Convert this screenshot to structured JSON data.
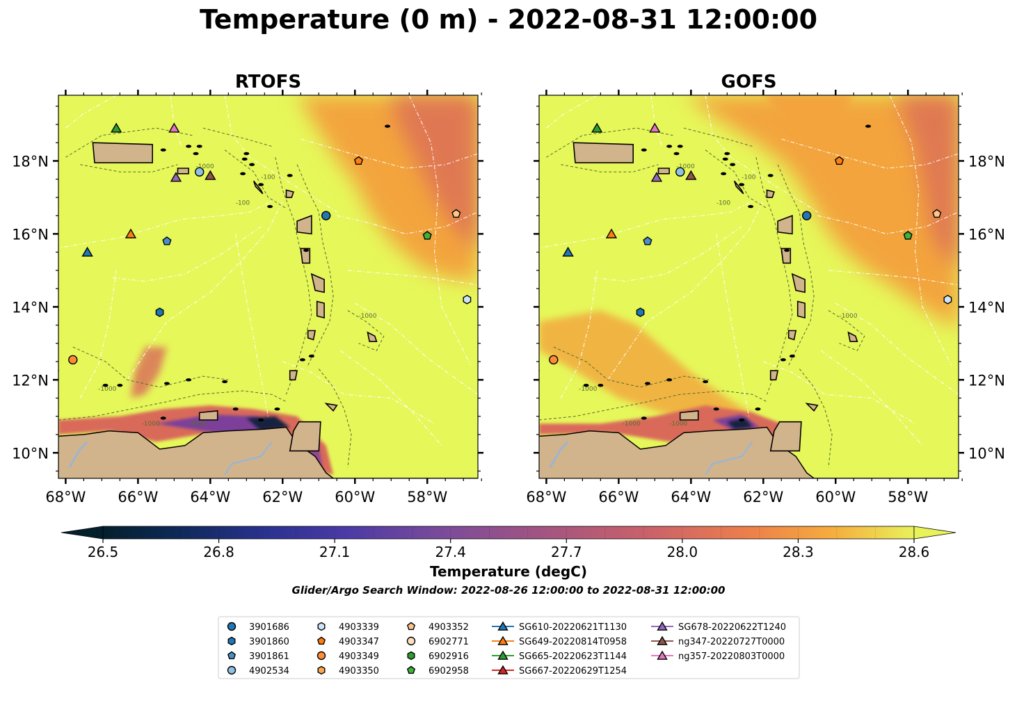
{
  "figure": {
    "suptitle": "Temperature (0 m) - 2022-08-31 12:00:00",
    "search_window": "Glider/Argo Search Window: 2022-08-26 12:00:00 to 2022-08-31 12:00:00"
  },
  "colors": {
    "land": "#d2b48c",
    "ocean_warm": "#e6f75a",
    "ocean_orange": "#f3a43c",
    "ocean_red": "#d96b5a",
    "ocean_purple": "#7b3f9a",
    "ocean_dark": "#162041",
    "eez_line": "#ffffff",
    "bathy_contour": "#556b2f",
    "river": "#9db4d0"
  },
  "chart_data": {
    "type": "heatmap",
    "map_extent": {
      "lon": [
        -68.2,
        -56.6
      ],
      "lat": [
        9.3,
        19.8
      ]
    },
    "x_ticks": [
      -68,
      -66,
      -64,
      -62,
      -60,
      -58
    ],
    "x_tick_labels": [
      "68°W",
      "66°W",
      "64°W",
      "62°W",
      "60°W",
      "58°W"
    ],
    "y_ticks": [
      10,
      12,
      14,
      16,
      18
    ],
    "y_tick_labels": [
      "10°N",
      "12°N",
      "14°N",
      "16°N",
      "18°N"
    ],
    "bathy_contour_labels": [
      "-100",
      "-1000"
    ],
    "panels": [
      {
        "title": "RTOFS",
        "y_axis_side": "left"
      },
      {
        "title": "GOFS",
        "y_axis_side": "right"
      }
    ],
    "colorbar": {
      "label": "Temperature (degC)",
      "min": 26.5,
      "max": 28.6,
      "step": 0.1,
      "extend": "both",
      "ticks": [
        "26.5",
        "26.8",
        "27.1",
        "27.4",
        "27.7",
        "28.0",
        "28.3",
        "28.6"
      ],
      "colormap": "thermal"
    },
    "observations": [
      {
        "id": "3901686",
        "type": "argo",
        "marker": "circle",
        "color": "#1f77b4",
        "lon": -60.8,
        "lat": 16.5
      },
      {
        "id": "3901860",
        "type": "argo",
        "marker": "hexagon",
        "color": "#1f77b4",
        "lon": -65.4,
        "lat": 13.85
      },
      {
        "id": "3901861",
        "type": "argo",
        "marker": "pentagon",
        "color": "#4a90c8",
        "lon": -65.2,
        "lat": 15.8
      },
      {
        "id": "4902534",
        "type": "argo",
        "marker": "circle",
        "color": "#8fc1e3",
        "lon": -64.3,
        "lat": 17.7
      },
      {
        "id": "4903339",
        "type": "argo",
        "marker": "hexagon",
        "color": "#cde6f7",
        "lon": -56.9,
        "lat": 14.2
      },
      {
        "id": "4903347",
        "type": "argo",
        "marker": "pentagon",
        "color": "#ff7f0e",
        "lon": -59.9,
        "lat": 18.0
      },
      {
        "id": "4903349",
        "type": "argo",
        "marker": "circle",
        "color": "#ff8c3a",
        "lon": -67.8,
        "lat": 12.55
      },
      {
        "id": "4903350",
        "type": "argo",
        "marker": "hexagon",
        "color": "#ffa54f",
        "lon": null,
        "lat": null
      },
      {
        "id": "4903352",
        "type": "argo",
        "marker": "pentagon",
        "color": "#ffc48a",
        "lon": -57.2,
        "lat": 16.55
      },
      {
        "id": "6902771",
        "type": "argo",
        "marker": "circle",
        "color": "#ffe0c2",
        "lon": null,
        "lat": null
      },
      {
        "id": "6902916",
        "type": "argo",
        "marker": "hexagon",
        "color": "#2ca02c",
        "lon": null,
        "lat": null
      },
      {
        "id": "6902958",
        "type": "argo",
        "marker": "pentagon",
        "color": "#3cb43c",
        "lon": -58.0,
        "lat": 15.95
      },
      {
        "id": "SG610-20220621T1130",
        "type": "glider",
        "marker": "triangle",
        "color": "#1f77b4",
        "lon": -67.4,
        "lat": 15.5
      },
      {
        "id": "SG649-20220814T0958",
        "type": "glider",
        "marker": "triangle",
        "color": "#ff7f0e",
        "lon": -66.2,
        "lat": 16.0
      },
      {
        "id": "SG665-20220623T1144",
        "type": "glider",
        "marker": "triangle",
        "color": "#2ca02c",
        "lon": -66.6,
        "lat": 18.9
      },
      {
        "id": "SG667-20220629T1254",
        "type": "glider",
        "marker": "triangle",
        "color": "#d62728",
        "lon": null,
        "lat": null
      },
      {
        "id": "SG678-20220622T1240",
        "type": "glider",
        "marker": "triangle",
        "color": "#9467bd",
        "lon": -64.95,
        "lat": 17.55
      },
      {
        "id": "ng347-20220727T0000",
        "type": "glider",
        "marker": "triangle",
        "color": "#8c564b",
        "lon": -64.0,
        "lat": 17.6
      },
      {
        "id": "ng357-20220803T0000",
        "type": "glider",
        "marker": "triangle",
        "color": "#e377c2",
        "lon": -65.0,
        "lat": 18.9
      }
    ]
  }
}
